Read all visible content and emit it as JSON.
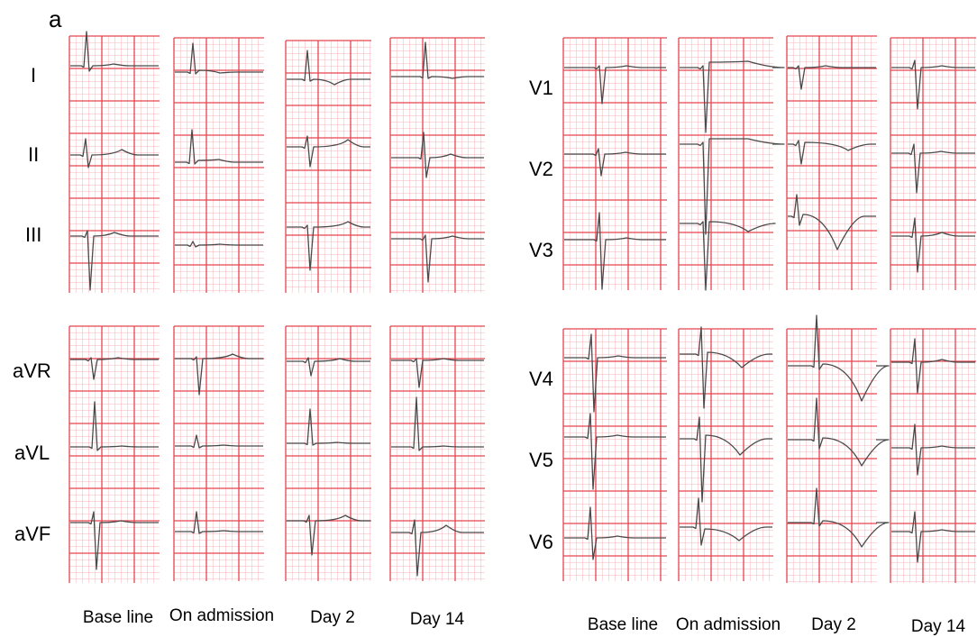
{
  "panel_label": "a",
  "grid_color": "#e8434f",
  "minor_grid_color": "#f6b3ba",
  "trace_color": "#4a4a4a",
  "columns": [
    "Base line",
    "On admission",
    "Day 2",
    "Day 14"
  ],
  "limb_leads": [
    "I",
    "II",
    "III"
  ],
  "augmented_leads": [
    "aVR",
    "aVL",
    "aVF"
  ],
  "precordial_upper": [
    "V1",
    "V2",
    "V3"
  ],
  "precordial_lower": [
    "V4",
    "V5",
    "V6"
  ],
  "left_column_labels": [
    "Base line",
    "On admission",
    "Day 2",
    "Day 14"
  ],
  "right_column_labels": [
    "Base line",
    "On admission",
    "Day 2",
    "Day 14"
  ]
}
